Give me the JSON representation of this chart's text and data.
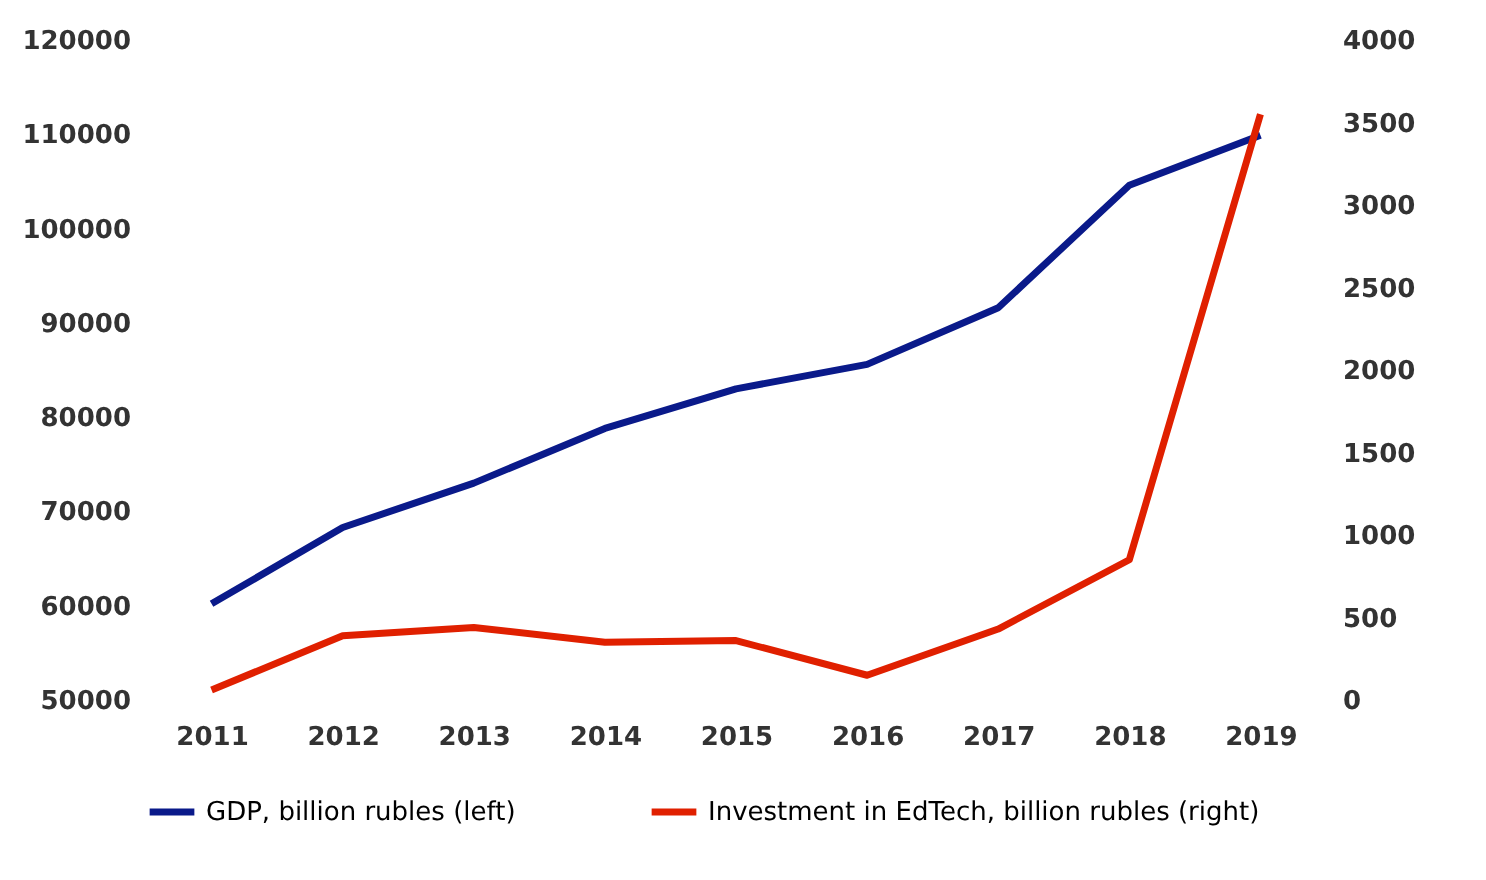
{
  "chart_data": {
    "type": "line",
    "categories": [
      "2011",
      "2012",
      "2013",
      "2014",
      "2015",
      "2016",
      "2017",
      "2018",
      "2019"
    ],
    "series": [
      {
        "name": "GDP, billion rubles (left)",
        "color": "#0a1a8a",
        "values": [
          60200,
          68300,
          73000,
          78800,
          83000,
          85600,
          91600,
          104600,
          109900
        ]
      },
      {
        "name": "Investment in EdTech, billion rubles (right)",
        "color": "#e02000",
        "axis": "y2",
        "values": [
          60,
          390,
          440,
          350,
          360,
          150,
          430,
          850,
          3550
        ]
      }
    ],
    "ylim": [
      50000,
      120000
    ],
    "yticks": [
      50000,
      60000,
      70000,
      80000,
      90000,
      100000,
      110000,
      120000
    ],
    "y2lim": [
      0,
      4000
    ],
    "y2ticks": [
      0,
      500,
      1000,
      1500,
      2000,
      2500,
      3000,
      3500,
      4000
    ],
    "grid": false,
    "legend": "bottom",
    "line_style": "solid",
    "marker": "none"
  }
}
